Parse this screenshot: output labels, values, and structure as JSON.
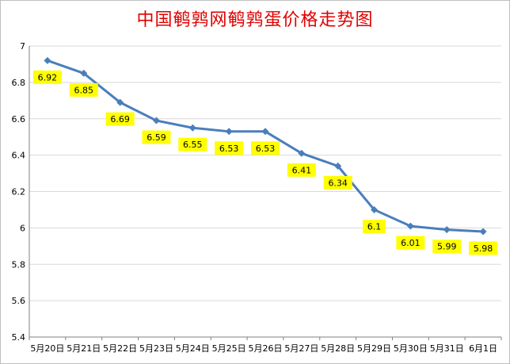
{
  "chart_data": {
    "type": "line",
    "title": "中国鹌鹑网鹌鹑蛋价格走势图",
    "xlabel": "",
    "ylabel": "",
    "categories": [
      "5月20日",
      "5月21日",
      "5月22日",
      "5月23日",
      "5月24日",
      "5月25日",
      "5月26日",
      "5月27日",
      "5月28日",
      "5月29日",
      "5月30日",
      "5月31日",
      "6月1日"
    ],
    "series": [
      {
        "values": [
          6.92,
          6.85,
          6.69,
          6.59,
          6.55,
          6.53,
          6.53,
          6.41,
          6.34,
          6.1,
          6.01,
          5.99,
          5.98
        ],
        "labels": [
          "6.92",
          "6.85",
          "6.69",
          "6.59",
          "6.55",
          "6.53",
          "6.53",
          "6.41",
          "6.34",
          "6.1",
          "6.01",
          "5.99",
          "5.98"
        ]
      }
    ],
    "ylim": [
      5.4,
      7
    ],
    "yticks": [
      "5.4",
      "5.6",
      "5.8",
      "6",
      "6.2",
      "6.4",
      "6.6",
      "6.8",
      "7"
    ],
    "grid": true,
    "legend": "none",
    "colors": {
      "line": "#4a7ebb",
      "marker": "#4a7ebb",
      "label_bg": "#ffff00",
      "title": "#e00000",
      "grid": "#d9d9d9"
    }
  }
}
